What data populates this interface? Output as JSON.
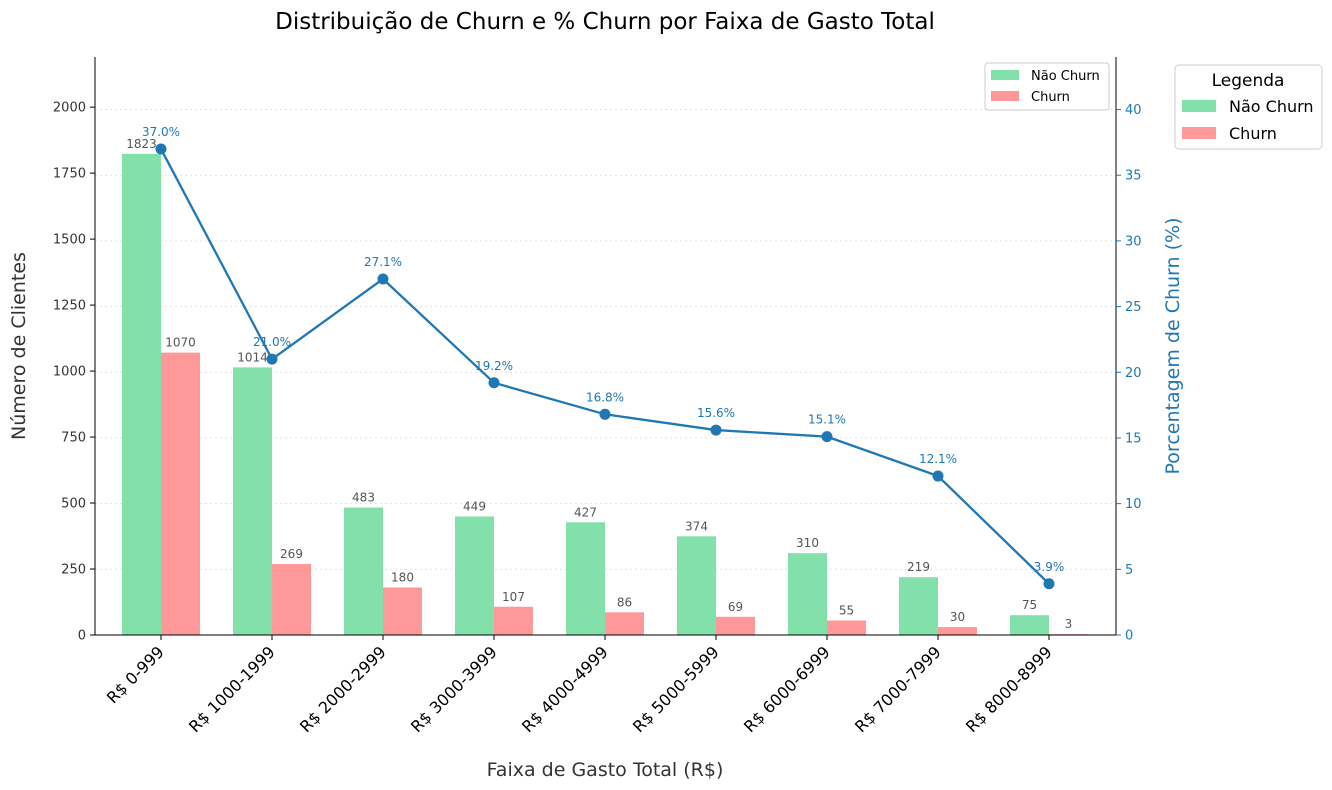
{
  "chart_data": {
    "type": "bar",
    "title": "Distribuição de Churn e % Churn por Faixa de Gasto Total",
    "xlabel": "Faixa de Gasto Total (R$)",
    "ylabel": "Número de Clientes",
    "ylabel_right": "Porcentagem de Churn (%)",
    "categories": [
      "R$ 0-999",
      "R$ 1000-1999",
      "R$ 2000-2999",
      "R$ 3000-3999",
      "R$ 4000-4999",
      "R$ 5000-5999",
      "R$ 6000-6999",
      "R$ 7000-7999",
      "R$ 8000-8999"
    ],
    "series": [
      {
        "name": "Não Churn",
        "color": "#82e0aa",
        "values": [
          1823,
          1014,
          483,
          449,
          427,
          374,
          310,
          219,
          75
        ]
      },
      {
        "name": "Churn",
        "color": "#ff9999",
        "values": [
          1070,
          269,
          180,
          107,
          86,
          69,
          55,
          30,
          3
        ]
      }
    ],
    "line": {
      "color": "#1f77b4",
      "values": [
        37.0,
        21.0,
        27.1,
        19.2,
        16.8,
        15.6,
        15.1,
        12.1,
        3.9
      ],
      "labels": [
        "37.0%",
        "21.0%",
        "27.1%",
        "19.2%",
        "16.8%",
        "15.6%",
        "15.1%",
        "12.1%",
        "3.9%"
      ]
    },
    "ylim": [
      0,
      2190
    ],
    "yticks": [
      0,
      250,
      500,
      750,
      1000,
      1250,
      1500,
      1750,
      2000
    ],
    "ylim_right": [
      0,
      44
    ],
    "yticks_right": [
      0,
      5,
      10,
      15,
      20,
      25,
      30,
      35,
      40
    ],
    "grid": true,
    "legend_inner": {
      "placement": "top-right",
      "entries": [
        "Não Churn",
        "Churn"
      ]
    },
    "legend_outer": {
      "title": "Legenda",
      "placement": "outside-right",
      "entries": [
        "Não Churn",
        "Churn"
      ]
    }
  }
}
